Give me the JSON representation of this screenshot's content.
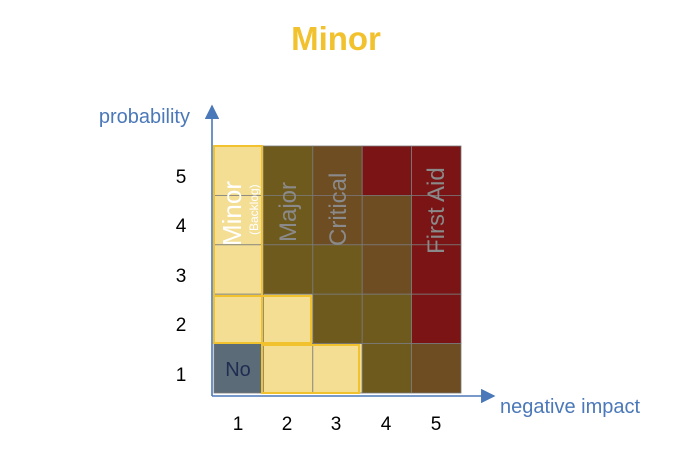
{
  "title": "Minor",
  "y_axis_label": "probability",
  "x_axis_label": "negative impact",
  "x_ticks": [
    "1",
    "2",
    "3",
    "4",
    "5"
  ],
  "y_ticks": [
    "1",
    "2",
    "3",
    "4",
    "5"
  ],
  "colors": {
    "title": "#f2c12e",
    "axis": "#4a78b8",
    "minor": "#f3de93",
    "minor_border": "#f2c12e",
    "no": "#5c6b78",
    "major": "#6f5a1d",
    "critical": "#6f4d22",
    "first_aid": "#7b1414",
    "grid": "#7a7a7a"
  },
  "matrix": {
    "rows": [
      {
        "probability": 5,
        "zones": [
          "minor",
          "major",
          "critical",
          "first_aid",
          "first_aid"
        ]
      },
      {
        "probability": 4,
        "zones": [
          "minor",
          "major",
          "critical",
          "critical",
          "first_aid"
        ]
      },
      {
        "probability": 3,
        "zones": [
          "minor",
          "major",
          "major",
          "critical",
          "first_aid"
        ]
      },
      {
        "probability": 2,
        "zones": [
          "minor",
          "minor",
          "major",
          "major",
          "first_aid"
        ]
      },
      {
        "probability": 1,
        "zones": [
          "no",
          "minor",
          "minor",
          "major",
          "critical"
        ]
      }
    ]
  },
  "zone_labels": {
    "minor": "Minor",
    "backlog": "(Backlog)",
    "major": "Major",
    "critical": "Critical",
    "first_aid": "First Aid",
    "no": "No"
  }
}
